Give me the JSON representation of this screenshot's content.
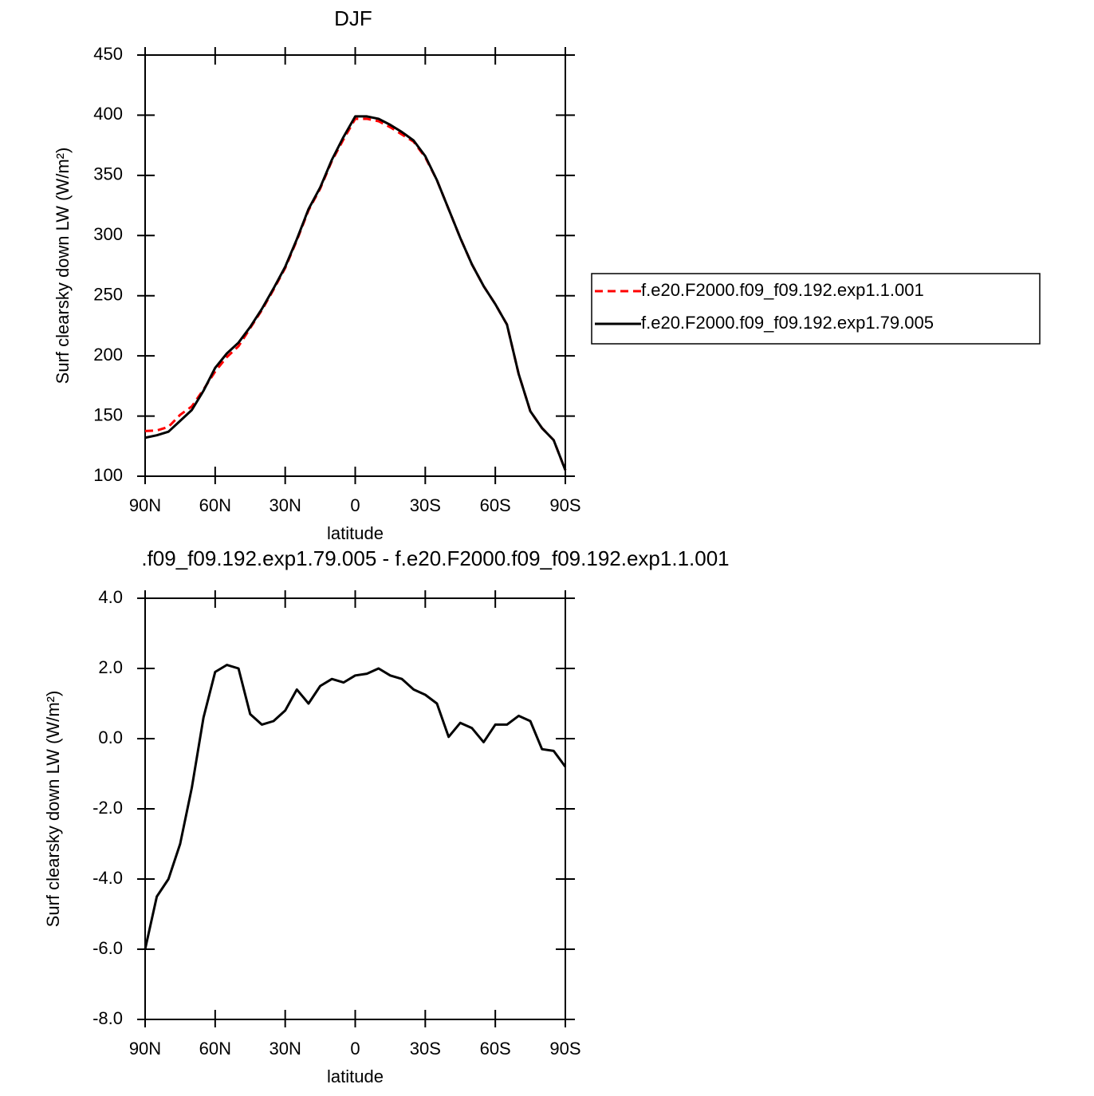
{
  "chart_data": [
    {
      "type": "line",
      "title": "DJF",
      "xlabel": "latitude",
      "ylabel": "Surf clearsky down LW (W/m²)",
      "x": [
        90,
        85,
        80,
        75,
        70,
        65,
        60,
        55,
        50,
        45,
        40,
        35,
        30,
        25,
        20,
        15,
        10,
        5,
        0,
        -5,
        -10,
        -15,
        -20,
        -25,
        -30,
        -35,
        -40,
        -45,
        -50,
        -55,
        -60,
        -65,
        -70,
        -75,
        -80,
        -85,
        -90
      ],
      "xlim": [
        90,
        -90
      ],
      "xticks": [
        {
          "value": 90,
          "label": "90N"
        },
        {
          "value": 60,
          "label": "60N"
        },
        {
          "value": 30,
          "label": "30N"
        },
        0,
        {
          "value": -30,
          "label": "30S"
        },
        {
          "value": -60,
          "label": "60S"
        },
        {
          "value": -90,
          "label": "90S"
        }
      ],
      "ylim": [
        100,
        450
      ],
      "yticks": [
        100,
        150,
        200,
        250,
        300,
        350,
        400,
        450
      ],
      "legend": "right",
      "series": [
        {
          "name": "f.e20.F2000.f09_f09.192.exp1.1.001",
          "color": "#ff0000",
          "linestyle": "dashed",
          "values": [
            137.5,
            138,
            141,
            151,
            158,
            172,
            187,
            199,
            208,
            223,
            238,
            255,
            273,
            296,
            321,
            339,
            362,
            380,
            397,
            397,
            395,
            390,
            384,
            378,
            365,
            346,
            322,
            298,
            276,
            258,
            243,
            226,
            185,
            154,
            140,
            130,
            105
          ]
        },
        {
          "name": "f.e20.F2000.f09_f09.192.exp1.79.005",
          "color": "#000000",
          "linestyle": "solid",
          "values": [
            132,
            134,
            137,
            146,
            155,
            171,
            190,
            202,
            211,
            224,
            239,
            256,
            274,
            297,
            322,
            340,
            363,
            382,
            399,
            399,
            397,
            392,
            386,
            379,
            366,
            346,
            322,
            298,
            276,
            258,
            243,
            226,
            185,
            154,
            140,
            130,
            105
          ]
        }
      ]
    },
    {
      "type": "line",
      "title": ".f09_f09.192.exp1.79.005 - f.e20.F2000.f09_f09.192.exp1.1.001",
      "xlabel": "latitude",
      "ylabel": "Surf clearsky down LW (W/m²)",
      "x": [
        90,
        85,
        80,
        75,
        70,
        65,
        60,
        55,
        50,
        45,
        40,
        35,
        30,
        25,
        20,
        15,
        10,
        5,
        0,
        -5,
        -10,
        -15,
        -20,
        -25,
        -30,
        -35,
        -40,
        -45,
        -50,
        -55,
        -60,
        -65,
        -70,
        -75,
        -80,
        -85,
        -90
      ],
      "xlim": [
        90,
        -90
      ],
      "xticks": [
        {
          "value": 90,
          "label": "90N"
        },
        {
          "value": 60,
          "label": "60N"
        },
        {
          "value": 30,
          "label": "30N"
        },
        0,
        {
          "value": -30,
          "label": "30S"
        },
        {
          "value": -60,
          "label": "60S"
        },
        {
          "value": -90,
          "label": "90S"
        }
      ],
      "ylim": [
        -8,
        4
      ],
      "yticks": [
        {
          "value": -8,
          "label": "-8.0"
        },
        {
          "value": -6,
          "label": "-6.0"
        },
        {
          "value": -4,
          "label": "-4.0"
        },
        {
          "value": -2,
          "label": "-2.0"
        },
        {
          "value": 0,
          "label": "0.0"
        },
        {
          "value": 2,
          "label": "2.0"
        },
        {
          "value": 4,
          "label": "4.0"
        }
      ],
      "series": [
        {
          "color": "#000000",
          "linestyle": "solid",
          "values": [
            -6.0,
            -4.5,
            -4.0,
            -3.0,
            -1.4,
            0.6,
            1.9,
            2.1,
            2.0,
            0.7,
            0.4,
            0.5,
            0.8,
            1.4,
            1.0,
            1.5,
            1.7,
            1.6,
            1.8,
            1.85,
            2.0,
            1.8,
            1.7,
            1.4,
            1.25,
            1.0,
            0.05,
            0.45,
            0.3,
            -0.1,
            0.4,
            0.4,
            0.65,
            0.5,
            -0.3,
            -0.35,
            -0.8
          ]
        }
      ]
    }
  ]
}
